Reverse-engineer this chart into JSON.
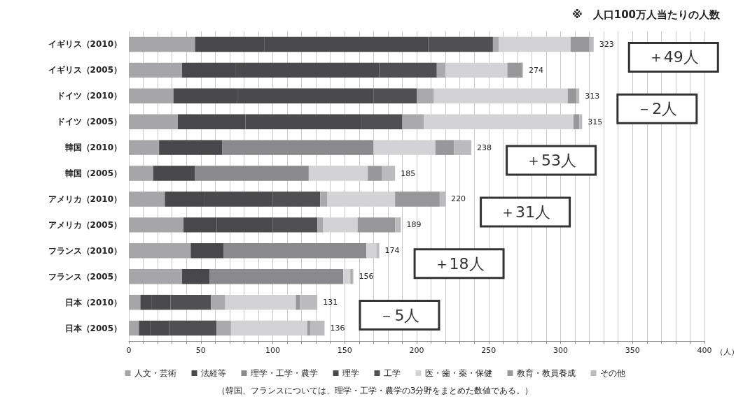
{
  "chart_data": {
    "type": "bar",
    "orientation": "horizontal",
    "stacked": true,
    "subtitle": "※　人口100万人当たりの人数",
    "xlabel": "（人）",
    "categories": [
      "イギリス（2010）",
      "イギリス（2005）",
      "ドイツ（2010）",
      "ドイツ（2005）",
      "韓国（2010）",
      "韓国（2005）",
      "アメリカ（2010）",
      "アメリカ（2005）",
      "フランス（2010）",
      "フランス（2005）",
      "日本（2010）",
      "日本（2005）"
    ],
    "series": [
      {
        "name": "人文・芸術",
        "color": "#a6a6a8",
        "values": [
          46,
          37,
          31,
          34,
          21,
          17,
          25,
          38,
          43,
          37,
          8,
          7
        ]
      },
      {
        "name": "法経等",
        "color": "#48484a",
        "values": [
          48,
          37,
          44,
          47,
          44,
          29,
          28,
          23,
          23,
          19,
          8,
          8
        ]
      },
      {
        "name": "理学・工学・農学",
        "color": "#8a8a8c",
        "values": [
          0,
          0,
          0,
          0,
          105,
          79,
          0,
          0,
          99,
          93,
          0,
          0
        ]
      },
      {
        "name": "理学",
        "color": "#4a4a4c",
        "values": [
          114,
          100,
          95,
          81,
          0,
          0,
          47,
          39,
          0,
          0,
          13,
          13
        ]
      },
      {
        "name": "工学",
        "color": "#505052",
        "values": [
          45,
          40,
          30,
          28,
          0,
          0,
          33,
          31,
          0,
          0,
          28,
          33
        ]
      },
      {
        "color": "#aaaaac",
        "values": [
          4,
          6,
          12,
          15,
          0,
          0,
          5,
          4,
          0,
          0,
          10,
          10
        ]
      },
      {
        "name": "医・歯・薬・保健",
        "color": "#d3d3d5",
        "values": [
          50,
          43,
          93,
          104,
          43,
          41,
          47,
          24,
          7,
          5,
          49,
          53
        ]
      },
      {
        "name": "教育・教員養成",
        "color": "#98989a",
        "values": [
          13,
          10,
          6,
          4,
          13,
          10,
          31,
          26,
          0,
          1,
          3,
          2
        ]
      },
      {
        "name": "その他",
        "color": "#bbbbbd",
        "values": [
          3,
          1,
          2,
          2,
          12,
          9,
          4,
          4,
          2,
          1,
          12,
          10
        ]
      }
    ],
    "totals": [
      "323",
      "274",
      "313",
      "315",
      "238",
      "185",
      "220",
      "189",
      "174",
      "156",
      "131",
      "136"
    ],
    "xlim": [
      0,
      400
    ],
    "xticks": [
      0,
      {
        "value": 10,
        "label": null
      },
      {
        "value": 20,
        "label": null
      },
      {
        "value": 30,
        "label": null
      },
      {
        "value": 40,
        "label": null
      },
      50,
      {
        "value": 60,
        "label": null
      },
      {
        "value": 70,
        "label": null
      },
      {
        "value": 80,
        "label": null
      },
      {
        "value": 90,
        "label": null
      },
      100,
      {
        "value": 110,
        "label": null
      },
      {
        "value": 120,
        "label": null
      },
      {
        "value": 130,
        "label": null
      },
      {
        "value": 140,
        "label": null
      },
      150,
      {
        "value": 160,
        "label": null
      },
      {
        "value": 170,
        "label": null
      },
      {
        "value": 180,
        "label": null
      },
      {
        "value": 190,
        "label": null
      },
      200,
      {
        "value": 210,
        "label": null
      },
      {
        "value": 220,
        "label": null
      },
      {
        "value": 230,
        "label": null
      },
      {
        "value": 240,
        "label": null
      },
      250,
      {
        "value": 260,
        "label": null
      },
      {
        "value": 270,
        "label": null
      },
      {
        "value": 280,
        "label": null
      },
      {
        "value": 290,
        "label": null
      },
      300,
      {
        "value": 310,
        "label": null
      },
      {
        "value": 320,
        "label": null
      },
      {
        "value": 330,
        "label": null
      },
      {
        "value": 340,
        "label": null
      },
      350,
      {
        "value": 360,
        "label": null
      },
      {
        "value": 370,
        "label": null
      },
      {
        "value": 380,
        "label": null
      },
      {
        "value": 390,
        "label": null
      },
      400
    ],
    "grid": "x",
    "legend": "bottom",
    "annotations": [
      "＋49人",
      "－2人",
      "＋53人",
      "＋31人",
      "＋18人",
      "－5人",
      "（韓国、フランスについては、理学・工学・農学の3分野をまとめた数値である。）"
    ]
  }
}
